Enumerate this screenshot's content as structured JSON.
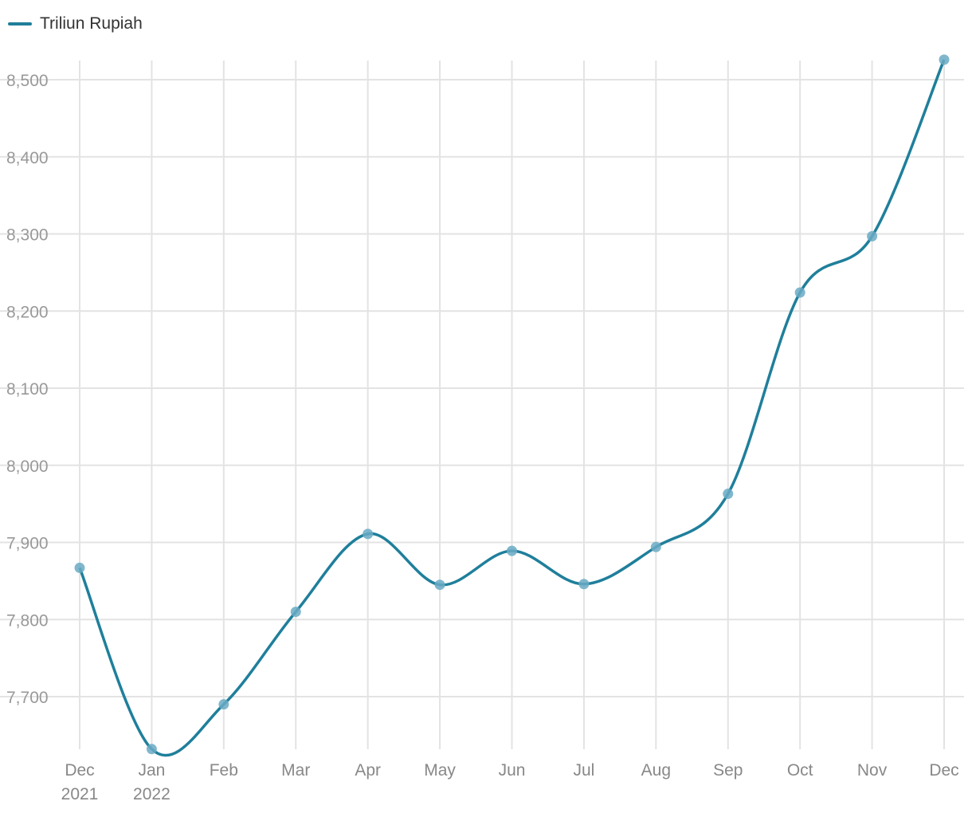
{
  "legend": {
    "label": "Triliun Rupiah"
  },
  "colors": {
    "series": "#1f7f9b",
    "grid": "#e3e3e3",
    "point": "#6aaac4"
  },
  "chart_data": {
    "type": "line",
    "smooth": true,
    "grid": true,
    "legend_position": "top-left",
    "title": "",
    "xlabel": "",
    "ylabel": "",
    "categories": [
      [
        "Dec",
        "2021"
      ],
      [
        "Jan",
        "2022"
      ],
      [
        "Feb"
      ],
      [
        "Mar"
      ],
      [
        "Apr"
      ],
      [
        "May"
      ],
      [
        "Jun"
      ],
      [
        "Jul"
      ],
      [
        "Aug"
      ],
      [
        "Sep"
      ],
      [
        "Oct"
      ],
      [
        "Nov"
      ],
      [
        "Dec"
      ]
    ],
    "series": [
      {
        "name": "Triliun Rupiah",
        "values": [
          7867,
          7632,
          7690,
          7810,
          7911,
          7845,
          7889,
          7846,
          7894,
          7963,
          8224,
          8297,
          8526
        ]
      }
    ],
    "ylim": [
      7630,
      8525
    ],
    "yticks": [
      7700,
      7800,
      7900,
      8000,
      8100,
      8200,
      8300,
      8400,
      8500
    ],
    "ytick_labels": [
      "7,700",
      "7,800",
      "7,900",
      "8,000",
      "8,100",
      "8,200",
      "8,300",
      "8,400",
      "8,500"
    ]
  }
}
